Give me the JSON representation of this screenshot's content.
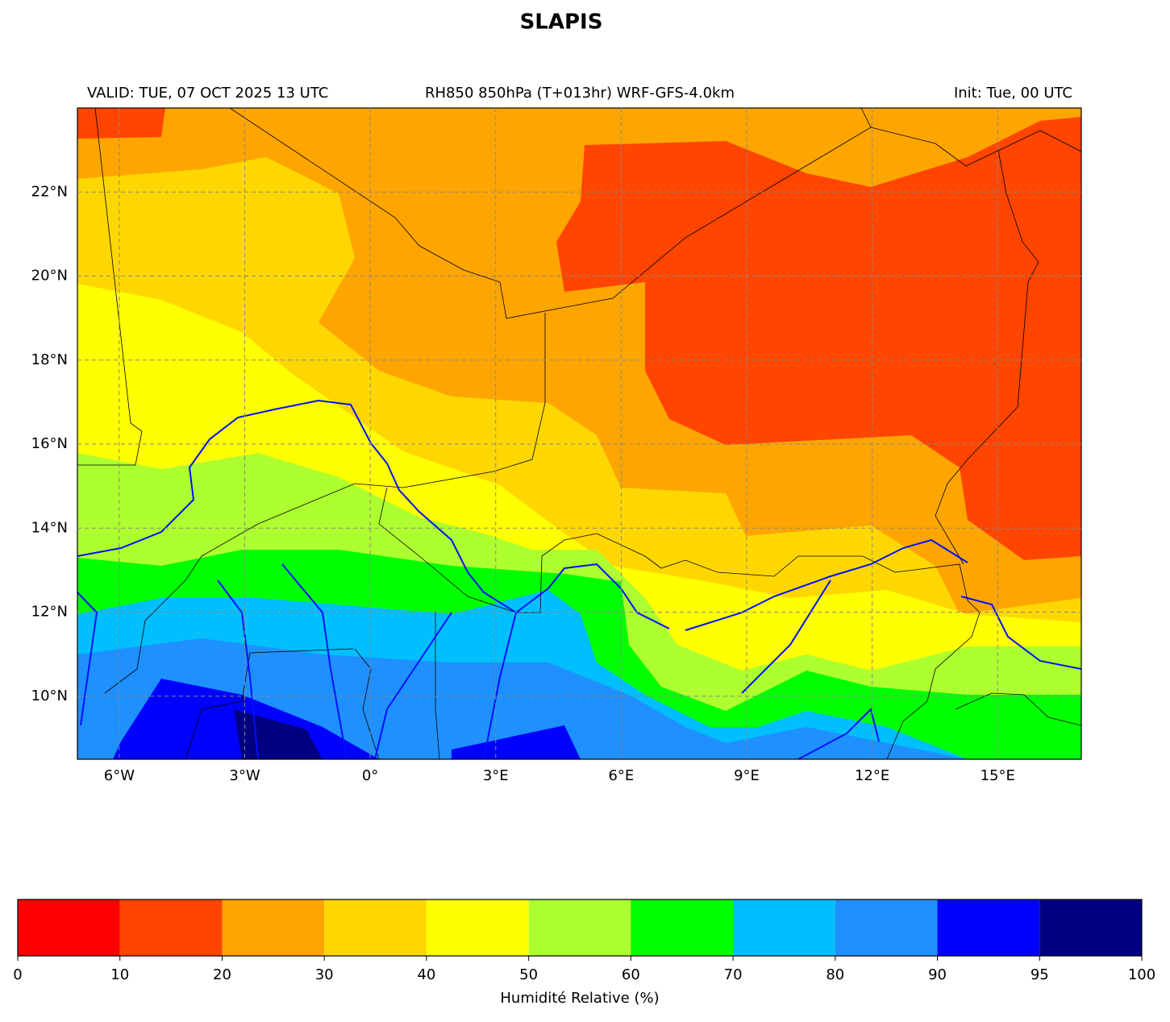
{
  "chart_data": {
    "type": "map",
    "title": "SLAPIS",
    "subtitle_left": "VALID: TUE, 07 OCT 2025 13 UTC",
    "subtitle_center": "RH850 850hPa (T+013hr) WRF-GFS-4.0km",
    "subtitle_right": "Init: Tue, 00 UTC",
    "xlim": [
      -7,
      17
    ],
    "ylim": [
      8.5,
      24
    ],
    "xticks": [
      {
        "value": -6,
        "label": "6°W"
      },
      {
        "value": -3,
        "label": "3°W"
      },
      {
        "value": 0,
        "label": "0°"
      },
      {
        "value": 3,
        "label": "3°E"
      },
      {
        "value": 6,
        "label": "6°E"
      },
      {
        "value": 9,
        "label": "9°E"
      },
      {
        "value": 12,
        "label": "12°E"
      },
      {
        "value": 15,
        "label": "15°E"
      }
    ],
    "yticks": [
      {
        "value": 10,
        "label": "10°N"
      },
      {
        "value": 12,
        "label": "12°N"
      },
      {
        "value": 14,
        "label": "14°N"
      },
      {
        "value": 16,
        "label": "16°N"
      },
      {
        "value": 18,
        "label": "18°N"
      },
      {
        "value": 20,
        "label": "20°N"
      },
      {
        "value": 22,
        "label": "22°N"
      }
    ],
    "grid": true,
    "colorbar": {
      "ticks": [
        0,
        10,
        20,
        30,
        40,
        50,
        60,
        70,
        80,
        90,
        95,
        100
      ],
      "colors": [
        "#ff0000",
        "#ff4500",
        "#ffa500",
        "#ffd700",
        "#ffff00",
        "#adff2f",
        "#00ff00",
        "#00bfff",
        "#1e90ff",
        "#0000ff",
        "#000080"
      ],
      "label": "Humidité Relative (%)"
    }
  }
}
